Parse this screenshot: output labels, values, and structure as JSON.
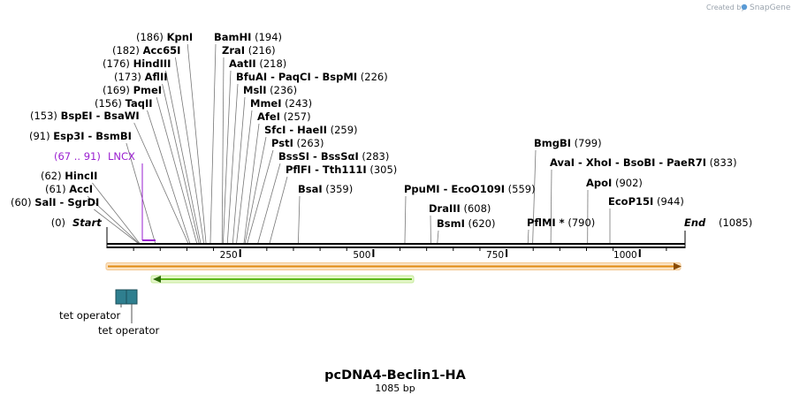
{
  "map": {
    "name": "pcDNA4-Beclin1-HA",
    "length_label": "1085 bp",
    "total_bp": 1085,
    "watermark": "Created by",
    "brand": "SnapGene"
  },
  "colors": {
    "backbone": "#000000",
    "feature_lncx": "#9a1fd0",
    "orange_arrow": "#e8921a",
    "green_arrow": "#7ed321",
    "tet_operator": "#2f7f8f"
  },
  "ticks": [
    "250",
    "500",
    "750",
    "1000"
  ],
  "ends": {
    "start_pos": "(0)",
    "start": "Start",
    "end": "End",
    "end_pos": "(1085)"
  },
  "lncx": {
    "range": "(67 .. 91)",
    "name": "LNCX"
  },
  "tet_operators": [
    "tet operator",
    "tet operator"
  ],
  "sites": [
    {
      "bp": 60,
      "pos": "(60)",
      "names": [
        "SalI",
        "SgrDI"
      ]
    },
    {
      "bp": 61,
      "pos": "(61)",
      "names": [
        "AccI"
      ]
    },
    {
      "bp": 62,
      "pos": "(62)",
      "names": [
        "HincII"
      ]
    },
    {
      "bp": 91,
      "pos": "(91)",
      "names": [
        "Esp3I",
        "BsmBI"
      ]
    },
    {
      "bp": 153,
      "pos": "(153)",
      "names": [
        "BspEI",
        "BsaWI"
      ]
    },
    {
      "bp": 156,
      "pos": "(156)",
      "names": [
        "TaqII"
      ]
    },
    {
      "bp": 169,
      "pos": "(169)",
      "names": [
        "PmeI"
      ]
    },
    {
      "bp": 173,
      "pos": "(173)",
      "names": [
        "AflII"
      ]
    },
    {
      "bp": 176,
      "pos": "(176)",
      "names": [
        "HindIII"
      ]
    },
    {
      "bp": 182,
      "pos": "(182)",
      "names": [
        "Acc65I"
      ]
    },
    {
      "bp": 186,
      "pos": "(186)",
      "names": [
        "KpnI"
      ]
    },
    {
      "bp": 194,
      "pos": "(194)",
      "names": [
        "BamHI"
      ]
    },
    {
      "bp": 216,
      "pos": "(216)",
      "names": [
        "ZraI"
      ]
    },
    {
      "bp": 218,
      "pos": "(218)",
      "names": [
        "AatII"
      ]
    },
    {
      "bp": 226,
      "pos": "(226)",
      "names": [
        "BfuAI",
        "PaqCI",
        "BspMI"
      ]
    },
    {
      "bp": 236,
      "pos": "(236)",
      "names": [
        "MslI"
      ]
    },
    {
      "bp": 243,
      "pos": "(243)",
      "names": [
        "MmeI"
      ]
    },
    {
      "bp": 257,
      "pos": "(257)",
      "names": [
        "AfeI"
      ]
    },
    {
      "bp": 259,
      "pos": "(259)",
      "names": [
        "SfcI",
        "HaeII"
      ]
    },
    {
      "bp": 263,
      "pos": "(263)",
      "names": [
        "PstI"
      ]
    },
    {
      "bp": 283,
      "pos": "(283)",
      "names": [
        "BssSI",
        "BssSαI"
      ]
    },
    {
      "bp": 305,
      "pos": "(305)",
      "names": [
        "PflFI",
        "Tth111I"
      ]
    },
    {
      "bp": 359,
      "pos": "(359)",
      "names": [
        "BsaI"
      ]
    },
    {
      "bp": 559,
      "pos": "(559)",
      "names": [
        "PpuMI",
        "EcoO109I"
      ]
    },
    {
      "bp": 608,
      "pos": "(608)",
      "names": [
        "DraIII"
      ]
    },
    {
      "bp": 620,
      "pos": "(620)",
      "names": [
        "BsmI"
      ]
    },
    {
      "bp": 790,
      "pos": "(790)",
      "names": [
        "PflMI *"
      ]
    },
    {
      "bp": 799,
      "pos": "(799)",
      "names": [
        "BmgBI"
      ]
    },
    {
      "bp": 833,
      "pos": "(833)",
      "names": [
        "AvaI",
        "XhoI",
        "BsoBI",
        "PaeR7I"
      ]
    },
    {
      "bp": 902,
      "pos": "(902)",
      "names": [
        "ApoI"
      ]
    },
    {
      "bp": 944,
      "pos": "(944)",
      "names": [
        "EcoP15I"
      ]
    }
  ]
}
